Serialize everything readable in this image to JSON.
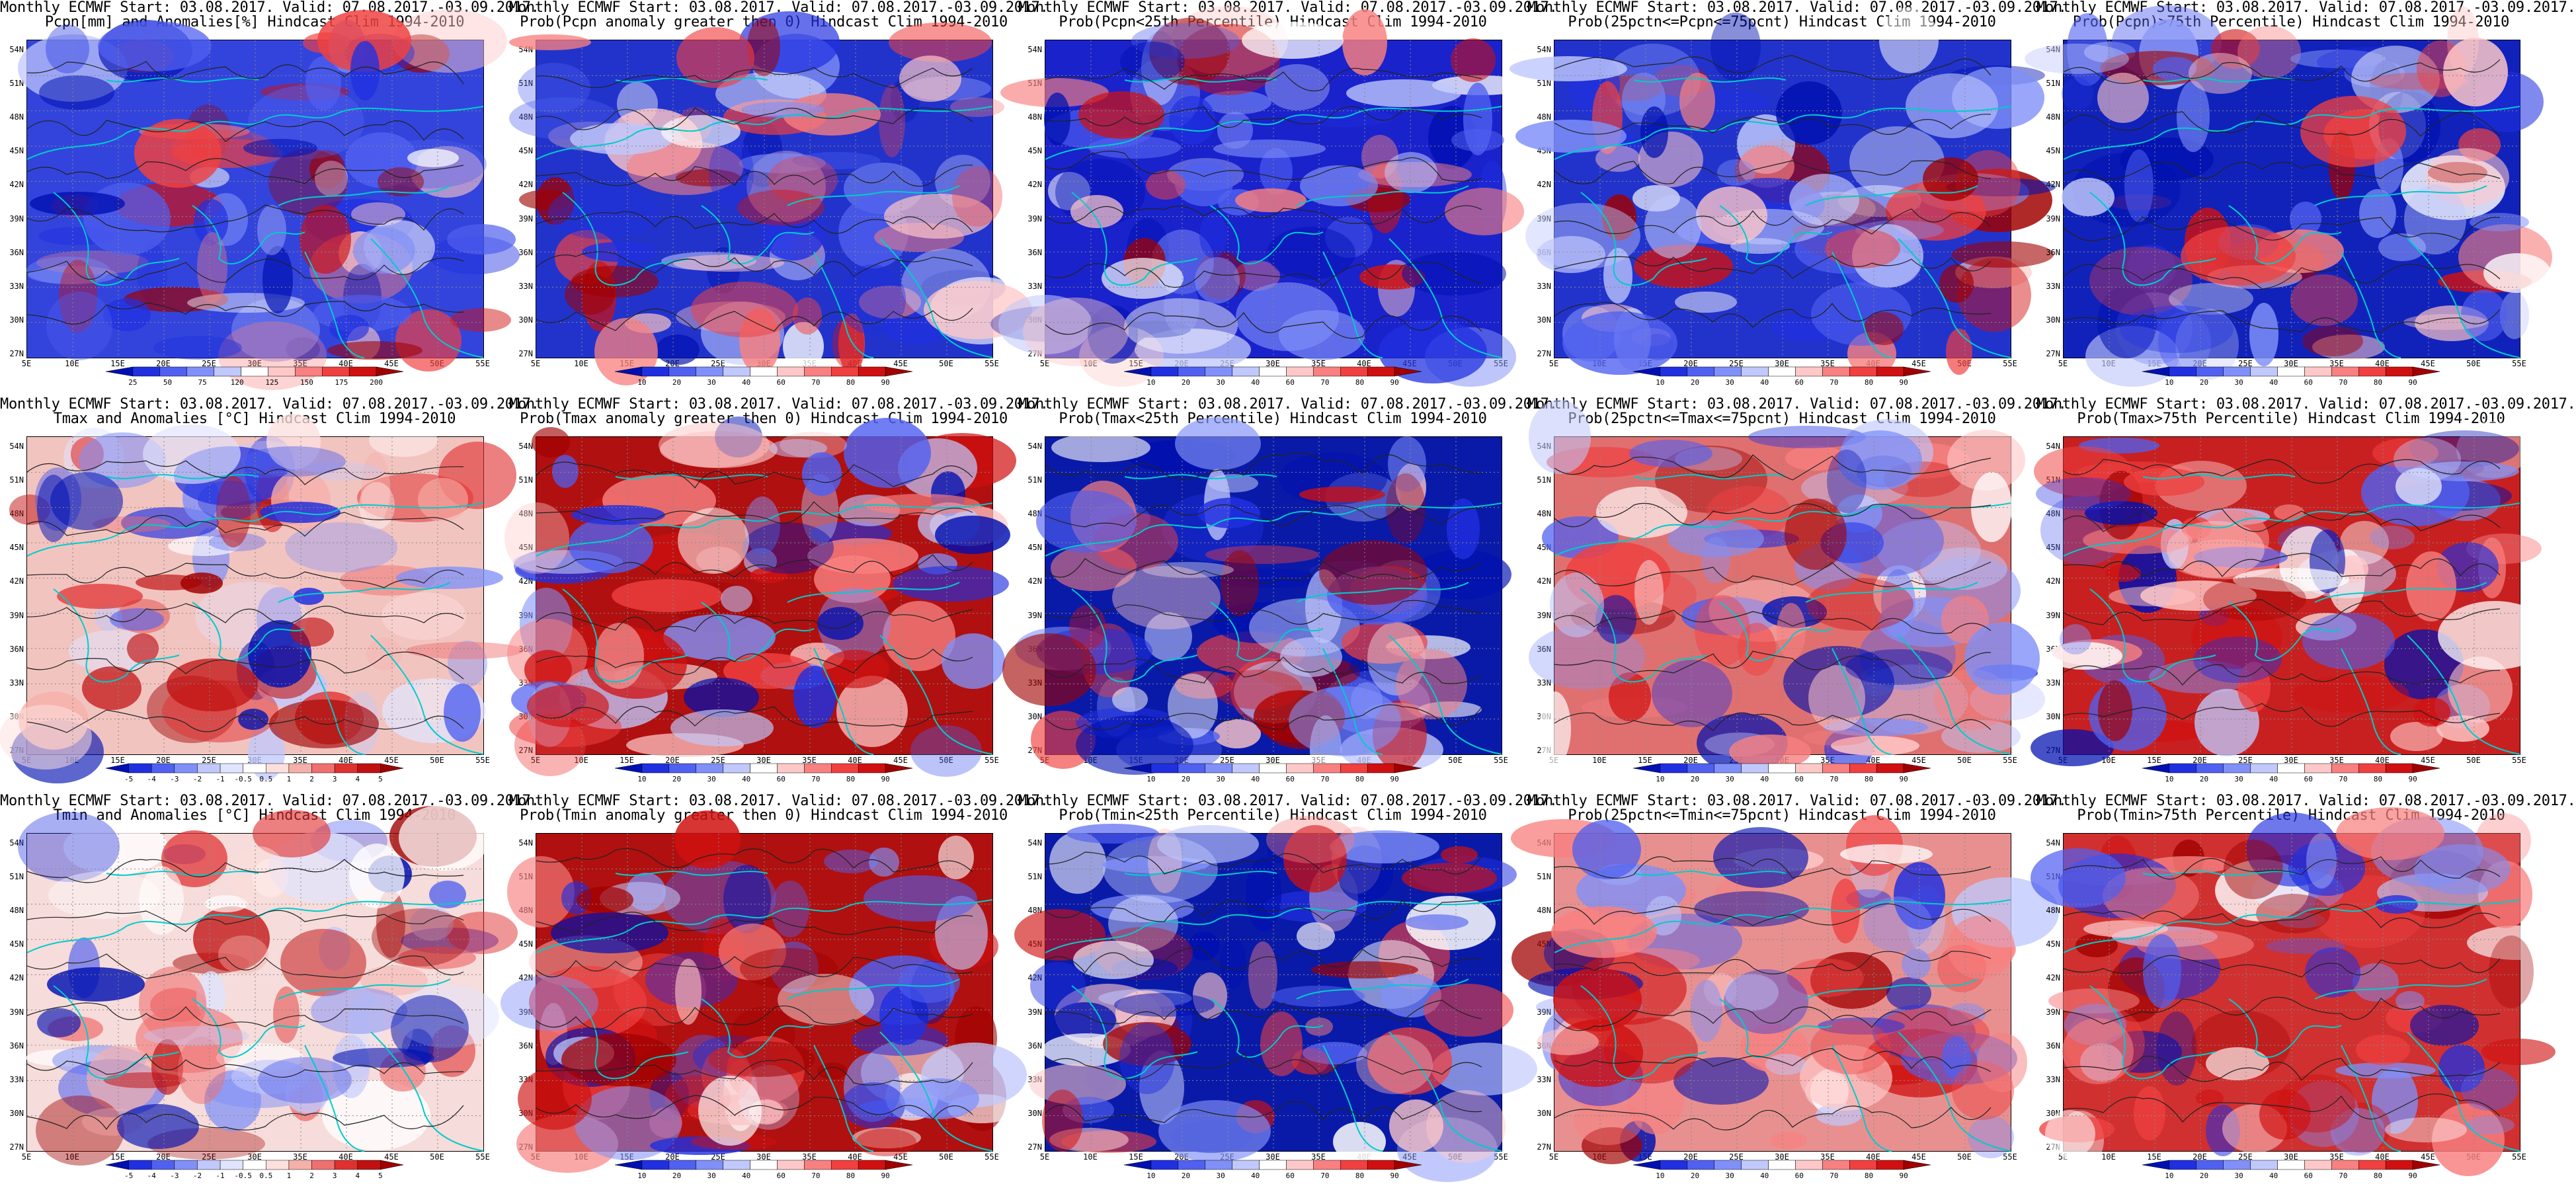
{
  "page": {
    "background": "#ffffff"
  },
  "panels": [
    {
      "title1": "Monthly ECMWF Start: 03.08.2017. Valid: 07.08.2017.-03.09.2017.",
      "title2": "Pcpn[mm] and Anomalies[%] Hindcast Clim 1994-2010",
      "palette": "precip_anom",
      "cbar_labels": [
        "25",
        "50",
        "75",
        "120",
        "125",
        "150",
        "175",
        "200"
      ],
      "base": "#3344dd"
    },
    {
      "title1": "Monthly ECMWF Start: 03.08.2017. Valid: 07.08.2017.-03.09.2017.",
      "title2": "Prob(Pcpn anomaly greater then 0) Hindcast Clim 1994-2010",
      "palette": "prob",
      "cbar_labels": [
        "10",
        "20",
        "30",
        "40",
        "60",
        "70",
        "80",
        "90"
      ],
      "base": "#2233cc"
    },
    {
      "title1": "Monthly ECMWF Start: 03.08.2017. Valid: 07.08.2017.-03.09.2017.",
      "title2": "Prob(Pcpn<25th Percentile) Hindcast Clim 1994-2010",
      "palette": "prob",
      "cbar_labels": [
        "10",
        "20",
        "30",
        "40",
        "60",
        "70",
        "80",
        "90"
      ],
      "base": "#1a22cc"
    },
    {
      "title1": "Monthly ECMWF Start: 03.08.2017. Valid: 07.08.2017.-03.09.2017.",
      "title2": "Prob(25pctn<=Pcpn<=75pcnt) Hindcast Clim 1994-2010",
      "palette": "prob",
      "cbar_labels": [
        "10",
        "20",
        "30",
        "40",
        "60",
        "70",
        "80",
        "90"
      ],
      "base": "#2233cc"
    },
    {
      "title1": "Monthly ECMWF Start: 03.08.2017. Valid: 07.08.2017.-03.09.2017.",
      "title2": "Prob(Pcpn)>75th Percentile) Hindcast Clim 1994-2010",
      "palette": "prob",
      "cbar_labels": [
        "10",
        "20",
        "30",
        "40",
        "60",
        "70",
        "80",
        "90"
      ],
      "base": "#1122bb"
    },
    {
      "title1": "Monthly ECMWF Start: 03.08.2017. Valid: 07.08.2017.-03.09.2017.",
      "title2": "Tmax and Anomalies [°C] Hindcast Clim 1994-2010",
      "palette": "temp_anom",
      "cbar_labels": [
        "-5",
        "-4",
        "-3",
        "-2",
        "-1",
        "-0.5",
        "0.5",
        "1",
        "2",
        "3",
        "4",
        "5"
      ],
      "base": "#f2c4c0"
    },
    {
      "title1": "Monthly ECMWF Start: 03.08.2017. Valid: 07.08.2017.-03.09.2017.",
      "title2": "Prob(Tmax anomaly greater then 0) Hindcast Clim 1994-2010",
      "palette": "prob",
      "cbar_labels": [
        "10",
        "20",
        "30",
        "40",
        "60",
        "70",
        "80",
        "90"
      ],
      "base": "#b01010"
    },
    {
      "title1": "Monthly ECMWF Start: 03.08.2017. Valid: 07.08.2017.-03.09.2017.",
      "title2": "Prob(Tmax<25th Percentile) Hindcast Clim 1994-2010",
      "palette": "prob",
      "cbar_labels": [
        "10",
        "20",
        "30",
        "40",
        "60",
        "70",
        "80",
        "90"
      ],
      "base": "#0a1aa8"
    },
    {
      "title1": "Monthly ECMWF Start: 03.08.2017. Valid: 07.08.2017.-03.09.2017.",
      "title2": "Prob(25pctn<=Tmax<=75pcnt) Hindcast Clim 1994-2010",
      "palette": "prob",
      "cbar_labels": [
        "10",
        "20",
        "30",
        "40",
        "60",
        "70",
        "80",
        "90"
      ],
      "base": "#e07070"
    },
    {
      "title1": "Monthly ECMWF Start: 03.08.2017. Valid: 07.08.2017.-03.09.2017.",
      "title2": "Prob(Tmax>75th Percentile) Hindcast Clim 1994-2010",
      "palette": "prob",
      "cbar_labels": [
        "10",
        "20",
        "30",
        "40",
        "60",
        "70",
        "80",
        "90"
      ],
      "base": "#c82020"
    },
    {
      "title1": "Monthly ECMWF Start: 03.08.2017. Valid: 07.08.2017.-03.09.2017.",
      "title2": "Tmin and Anomalies [°C] Hindcast Clim 1994-2010",
      "palette": "temp_anom",
      "cbar_labels": [
        "-5",
        "-4",
        "-3",
        "-2",
        "-1",
        "-0.5",
        "0.5",
        "1",
        "2",
        "3",
        "4",
        "5"
      ],
      "base": "#f6dcda"
    },
    {
      "title1": "Monthly ECMWF Start: 03.08.2017. Valid: 07.08.2017.-03.09.2017.",
      "title2": "Prob(Tmin anomaly greater then 0) Hindcast Clim 1994-2010",
      "palette": "prob",
      "cbar_labels": [
        "10",
        "20",
        "30",
        "40",
        "60",
        "70",
        "80",
        "90"
      ],
      "base": "#b01010"
    },
    {
      "title1": "Monthly ECMWF Start: 03.08.2017. Valid: 07.08.2017.-03.09.2017.",
      "title2": "Prob(Tmin<25th Percentile) Hindcast Clim 1994-2010",
      "palette": "prob",
      "cbar_labels": [
        "10",
        "20",
        "30",
        "40",
        "60",
        "70",
        "80",
        "90"
      ],
      "base": "#0a1aa8"
    },
    {
      "title1": "Monthly ECMWF Start: 03.08.2017. Valid: 07.08.2017.-03.09.2017.",
      "title2": "Prob(25pctn<=Tmin<=75pcnt) Hindcast Clim 1994-2010",
      "palette": "prob",
      "cbar_labels": [
        "10",
        "20",
        "30",
        "40",
        "60",
        "70",
        "80",
        "90"
      ],
      "base": "#e89090"
    },
    {
      "title1": "Monthly ECMWF Start: 03.08.2017. Valid: 07.08.2017.-03.09.2017.",
      "title2": "Prob(Tmin>75th Percentile) Hindcast Clim 1994-2010",
      "palette": "prob",
      "cbar_labels": [
        "10",
        "20",
        "30",
        "40",
        "60",
        "70",
        "80",
        "90"
      ],
      "base": "#d03030"
    }
  ],
  "lat_labels": [
    "54N",
    "51N",
    "48N",
    "45N",
    "42N",
    "39N",
    "36N",
    "33N",
    "30N",
    "27N"
  ],
  "lon_labels": [
    "5E",
    "10E",
    "15E",
    "20E",
    "25E",
    "30E",
    "35E",
    "40E",
    "45E",
    "50E",
    "55E"
  ],
  "palettes": {
    "prob": [
      "#0010b0",
      "#2030e0",
      "#5060f0",
      "#8090f8",
      "#c0c8fc",
      "#ffffff",
      "#ffc8c8",
      "#f88080",
      "#f04040",
      "#d01010",
      "#a00000"
    ],
    "precip_anom": [
      "#0010b0",
      "#2030e0",
      "#5060f0",
      "#8090f8",
      "#c0c8fc",
      "#ffffff",
      "#ffc8c8",
      "#f88080",
      "#f04040",
      "#d01010",
      "#a00000"
    ],
    "temp_anom": [
      "#0010b0",
      "#2030e0",
      "#5060f0",
      "#8090f8",
      "#c0c8fc",
      "#e0e4fe",
      "#ffffff",
      "#fde0de",
      "#f6b0aa",
      "#f07070",
      "#e03030",
      "#c01010",
      "#a00000"
    ]
  },
  "colors": {
    "coast": "#00cccc",
    "contour": "#222222",
    "grid": "#888888"
  }
}
